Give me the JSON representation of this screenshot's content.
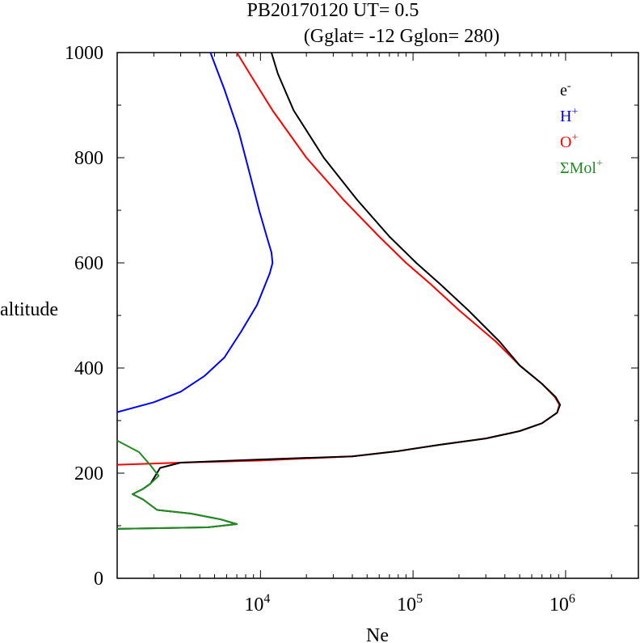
{
  "chart_data": {
    "type": "line",
    "title_line1": "PB20170120   UT=  0.5",
    "title_line2": "(Gglat= -12   Gglon=  280)",
    "xlabel": "Ne",
    "ylabel": "altitude",
    "x_scale": "log",
    "xlim": [
      1150,
      3000000
    ],
    "ylim": [
      0,
      1000
    ],
    "y_ticks": [
      "0",
      "200",
      "400",
      "600",
      "800",
      "1000"
    ],
    "x_ticks": [
      {
        "base": "10",
        "exp": "4",
        "value": 10000
      },
      {
        "base": "10",
        "exp": "5",
        "value": 100000
      },
      {
        "base": "10",
        "exp": "6",
        "value": 1000000
      }
    ],
    "legend": [
      {
        "base": "e",
        "sup": "-",
        "color": "#000000"
      },
      {
        "base": "H",
        "sup": "+",
        "color": "#0000ff"
      },
      {
        "base": "O",
        "sup": "+",
        "color": "#ff0000"
      },
      {
        "base": "ΣMol",
        "sup": "+",
        "color": "#228b22"
      }
    ],
    "series": [
      {
        "name": "O+",
        "color": "#ff0000",
        "points": [
          [
            1150,
            216
          ],
          [
            3000,
            220
          ],
          [
            10000,
            224
          ],
          [
            40000,
            232
          ],
          [
            80000,
            242
          ],
          [
            150000,
            254
          ],
          [
            300000,
            266
          ],
          [
            500000,
            280
          ],
          [
            700000,
            295
          ],
          [
            880000,
            315
          ],
          [
            910000,
            330
          ],
          [
            850000,
            345
          ],
          [
            700000,
            370
          ],
          [
            500000,
            405
          ],
          [
            350000,
            450
          ],
          [
            200000,
            510
          ],
          [
            130000,
            560
          ],
          [
            90000,
            600
          ],
          [
            60000,
            650
          ],
          [
            35000,
            720
          ],
          [
            20000,
            800
          ],
          [
            12000,
            890
          ],
          [
            8500,
            960
          ],
          [
            7000,
            1000
          ]
        ]
      },
      {
        "name": "e-",
        "color": "#000000",
        "points": [
          [
            1150,
            94
          ],
          [
            4500,
            97
          ],
          [
            7000,
            103
          ],
          [
            5500,
            112
          ],
          [
            3500,
            123
          ],
          [
            2100,
            130
          ],
          [
            1700,
            150
          ],
          [
            1450,
            160
          ],
          [
            1700,
            170
          ],
          [
            1900,
            180
          ],
          [
            2200,
            210
          ],
          [
            3000,
            220
          ],
          [
            10000,
            226
          ],
          [
            40000,
            232
          ],
          [
            80000,
            242
          ],
          [
            150000,
            254
          ],
          [
            300000,
            266
          ],
          [
            500000,
            280
          ],
          [
            700000,
            295
          ],
          [
            880000,
            315
          ],
          [
            920000,
            330
          ],
          [
            860000,
            345
          ],
          [
            700000,
            370
          ],
          [
            500000,
            405
          ],
          [
            370000,
            450
          ],
          [
            230000,
            510
          ],
          [
            150000,
            560
          ],
          [
            105000,
            600
          ],
          [
            70000,
            650
          ],
          [
            43000,
            720
          ],
          [
            26000,
            800
          ],
          [
            16500,
            890
          ],
          [
            13000,
            960
          ],
          [
            11800,
            1000
          ]
        ]
      },
      {
        "name": "H+",
        "color": "#0000ff",
        "points": [
          [
            1150,
            316
          ],
          [
            2000,
            335
          ],
          [
            3000,
            355
          ],
          [
            4300,
            385
          ],
          [
            5800,
            420
          ],
          [
            7500,
            470
          ],
          [
            9500,
            520
          ],
          [
            11500,
            580
          ],
          [
            12000,
            600
          ],
          [
            11800,
            620
          ],
          [
            11000,
            650
          ],
          [
            9800,
            700
          ],
          [
            8500,
            770
          ],
          [
            7200,
            850
          ],
          [
            5800,
            930
          ],
          [
            4700,
            1000
          ]
        ]
      },
      {
        "name": "ΣMol+",
        "color": "#228b22",
        "points": [
          [
            1150,
            94
          ],
          [
            4500,
            97
          ],
          [
            7000,
            103
          ],
          [
            5500,
            112
          ],
          [
            3500,
            123
          ],
          [
            2100,
            130
          ],
          [
            1700,
            150
          ],
          [
            1450,
            160
          ],
          [
            1700,
            170
          ],
          [
            1900,
            180
          ],
          [
            2150,
            195
          ],
          [
            1900,
            215
          ],
          [
            1600,
            240
          ],
          [
            1150,
            262
          ]
        ]
      }
    ]
  }
}
